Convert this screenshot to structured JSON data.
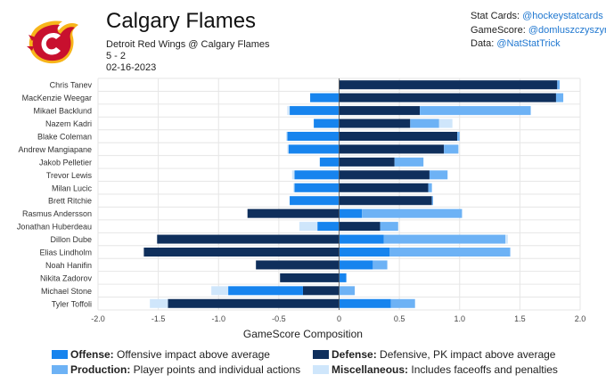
{
  "header": {
    "team": "Calgary Flames",
    "matchup": "Detroit Red Wings @ Calgary Flames",
    "score": "5 - 2",
    "date": "02-16-2023",
    "logo_icon": "calgary-flames-logo"
  },
  "credits": [
    {
      "label": "Stat Cards:",
      "handle": "@hockeystatcards"
    },
    {
      "label": "GameScore:",
      "handle": "@domluszczyszyn"
    },
    {
      "label": "Data:",
      "handle": "@NatStatTrick"
    }
  ],
  "legend": [
    {
      "key": "offense",
      "name": "Offense:",
      "desc": "Offensive impact above average",
      "color": "#1784ee"
    },
    {
      "key": "defense",
      "name": "Defense:",
      "desc": "Defensive, PK impact above average",
      "color": "#0f2f5c"
    },
    {
      "key": "production",
      "name": "Production:",
      "desc": "Player points and individual actions",
      "color": "#6db2f5"
    },
    {
      "key": "misc",
      "name": "Miscellaneous:",
      "desc": "Includes faceoffs and penalties",
      "color": "#cfe6fb"
    }
  ],
  "chart_data": {
    "type": "bar",
    "orientation": "horizontal",
    "stacked": true,
    "xlabel": "GameScore Composition",
    "xlim": [
      -2.0,
      2.0
    ],
    "xticks": [
      "-2.0",
      "-1.5",
      "-1.0",
      "-0.5",
      "0",
      "0.5",
      "1.0",
      "1.5",
      "2.0"
    ],
    "grid": true,
    "categories": [
      "Chris Tanev",
      "MacKenzie Weegar",
      "Mikael Backlund",
      "Nazem Kadri",
      "Blake Coleman",
      "Andrew Mangiapane",
      "Jakob Pelletier",
      "Trevor Lewis",
      "Milan Lucic",
      "Brett Ritchie",
      "Rasmus Andersson",
      "Jonathan Huberdeau",
      "Dillon Dube",
      "Elias Lindholm",
      "Noah Hanifin",
      "Nikita Zadorov",
      "Michael Stone",
      "Tyler Toffoli"
    ],
    "series": [
      {
        "name": "Offense",
        "values": [
          0.0,
          -0.24,
          -0.41,
          -0.21,
          -0.43,
          -0.42,
          -0.16,
          -0.37,
          -0.37,
          -0.41,
          0.19,
          -0.18,
          0.37,
          0.42,
          0.28,
          0.06,
          -0.62,
          0.43
        ]
      },
      {
        "name": "Defense",
        "values": [
          1.81,
          1.8,
          0.67,
          0.59,
          0.98,
          0.87,
          0.46,
          0.75,
          0.74,
          0.77,
          -0.76,
          0.34,
          -1.51,
          -1.62,
          -0.69,
          -0.49,
          -0.3,
          -1.42
        ]
      },
      {
        "name": "Production",
        "values": [
          0.02,
          0.06,
          0.92,
          0.24,
          0.02,
          0.12,
          0.24,
          0.15,
          0.03,
          0.01,
          0.83,
          0.15,
          1.01,
          1.0,
          0.12,
          0.0,
          0.13,
          0.2
        ]
      },
      {
        "name": "Miscellaneous",
        "values": [
          0.0,
          0.0,
          -0.02,
          0.11,
          -0.01,
          -0.01,
          0.0,
          -0.02,
          -0.01,
          0.0,
          0.0,
          -0.15,
          0.02,
          0.0,
          0.0,
          0.0,
          -0.14,
          -0.15
        ]
      }
    ]
  }
}
